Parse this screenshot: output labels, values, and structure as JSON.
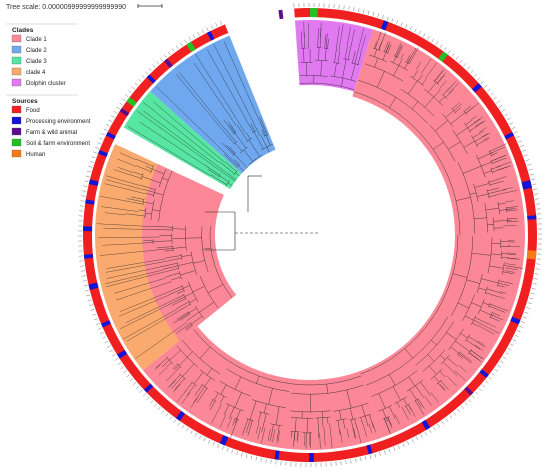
{
  "tree_scale": {
    "label": "Tree scale: 0.00000999999999999990"
  },
  "legends": {
    "clades": {
      "title": "Clades",
      "items": [
        {
          "label": "Clade 1",
          "color": "#fb8797"
        },
        {
          "label": "Clade 2",
          "color": "#6fa8ee"
        },
        {
          "label": "Clade 3",
          "color": "#56e5a2"
        },
        {
          "label": "clade 4",
          "color": "#fbaa6f"
        },
        {
          "label": "Dolphin cluster",
          "color": "#e179f1"
        }
      ]
    },
    "sources": {
      "title": "Sources",
      "items": [
        {
          "label": "Food",
          "color": "#f02020"
        },
        {
          "label": "Processing environment",
          "color": "#1414d6"
        },
        {
          "label": "Farm & wild animal",
          "color": "#5a0c8c"
        },
        {
          "label": "Soil & farm environment",
          "color": "#22c022"
        },
        {
          "label": "Human",
          "color": "#f77c19"
        }
      ]
    }
  },
  "clades": [
    {
      "name": "Clade 1",
      "color": "#fb8797"
    },
    {
      "name": "Clade 2",
      "color": "#6fa8ee"
    },
    {
      "name": "Clade 3",
      "color": "#56e5a2"
    },
    {
      "name": "clade 4",
      "color": "#fbaa6f"
    },
    {
      "name": "Dolphin cluster",
      "color": "#e179f1"
    }
  ],
  "sources": [
    {
      "name": "Food",
      "color": "#f02020"
    },
    {
      "name": "Processing environment",
      "color": "#1414d6"
    },
    {
      "name": "Farm & wild animal",
      "color": "#5a0c8c"
    },
    {
      "name": "Soil & farm environment",
      "color": "#22c022"
    },
    {
      "name": "Human",
      "color": "#f77c19"
    }
  ]
}
